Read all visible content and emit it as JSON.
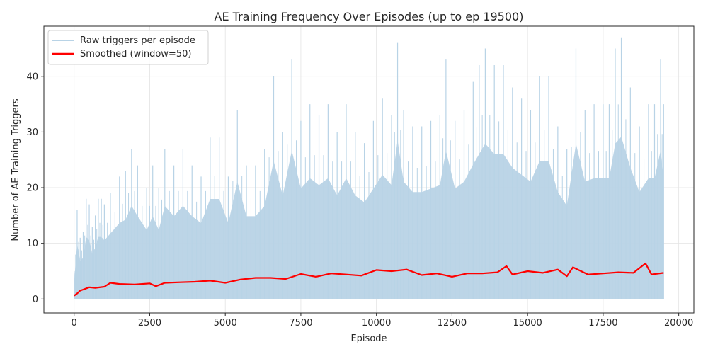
{
  "chart_data": {
    "type": "line",
    "title": "AE Training Frequency Over Episodes (up to ep 19500)",
    "xlabel": "Episode",
    "ylabel": "Number of AE Training Triggers",
    "xlim": [
      -1000,
      20500
    ],
    "ylim": [
      -2.5,
      49
    ],
    "xticks": [
      0,
      2500,
      5000,
      7500,
      10000,
      12500,
      15000,
      17500,
      20000
    ],
    "xtick_labels": [
      "0",
      "2500",
      "5000",
      "7500",
      "10000",
      "12500",
      "15000",
      "17500",
      "20000"
    ],
    "yticks": [
      0,
      10,
      20,
      30,
      40
    ],
    "ytick_labels": [
      "0",
      "10",
      "20",
      "30",
      "40"
    ],
    "grid": true,
    "legend_position": "upper-left",
    "series": [
      {
        "name": "Raw triggers per episode",
        "color": "#b8d3e6",
        "x": [
          0,
          100,
          200,
          300,
          400,
          500,
          600,
          700,
          800,
          900,
          1000,
          1200,
          1500,
          1700,
          1900,
          2100,
          2400,
          2600,
          2800,
          3000,
          3300,
          3600,
          3900,
          4200,
          4500,
          4800,
          5100,
          5400,
          5700,
          6000,
          6300,
          6600,
          6900,
          7200,
          7500,
          7800,
          8100,
          8400,
          8700,
          9000,
          9300,
          9600,
          9900,
          10200,
          10500,
          10700,
          10900,
          11200,
          11500,
          11800,
          12100,
          12300,
          12600,
          12900,
          13200,
          13400,
          13600,
          13900,
          14200,
          14500,
          14800,
          15100,
          15400,
          15700,
          16000,
          16300,
          16600,
          16900,
          17200,
          17500,
          17700,
          17900,
          18100,
          18400,
          18700,
          19000,
          19200,
          19400,
          19500
        ],
        "y_max": [
          5,
          16,
          11,
          12,
          18,
          17,
          13,
          15,
          18,
          18,
          17,
          19,
          22,
          23,
          27,
          24,
          20,
          24,
          20,
          27,
          24,
          27,
          24,
          22,
          29,
          29,
          22,
          34,
          24,
          24,
          27,
          40,
          30,
          43,
          32,
          35,
          33,
          35,
          30,
          35,
          30,
          28,
          32,
          36,
          33,
          46,
          34,
          31,
          31,
          32,
          33,
          43,
          32,
          34,
          39,
          42,
          45,
          42,
          42,
          38,
          36,
          34,
          40,
          40,
          31,
          27,
          45,
          34,
          35,
          35,
          35,
          45,
          47,
          38,
          31,
          35,
          35,
          43,
          35
        ],
        "y_min": [
          0,
          0,
          0,
          0,
          0,
          0,
          0,
          0,
          0,
          0,
          0,
          0,
          0,
          0,
          0,
          0,
          0,
          0,
          0,
          0,
          0,
          0,
          0,
          0,
          0,
          0,
          0,
          0,
          0,
          0,
          0,
          0,
          0,
          0,
          0,
          0,
          0,
          0,
          0,
          0,
          0,
          0,
          0,
          0,
          0,
          0,
          0,
          0,
          0,
          0,
          0,
          0,
          0,
          0,
          0,
          0,
          0,
          0,
          0,
          0,
          0,
          0,
          0,
          0,
          0,
          0,
          0,
          0,
          0,
          0,
          0,
          0,
          0,
          0,
          0,
          0,
          0,
          0,
          0
        ]
      },
      {
        "name": "Smoothed (window=50)",
        "color": "#ff0000",
        "x": [
          0,
          100,
          200,
          300,
          500,
          700,
          1000,
          1200,
          1500,
          2000,
          2500,
          2700,
          3000,
          3500,
          4000,
          4500,
          5000,
          5500,
          6000,
          6500,
          7000,
          7500,
          8000,
          8500,
          9000,
          9500,
          10000,
          10500,
          11000,
          11500,
          12000,
          12500,
          13000,
          13500,
          14000,
          14300,
          14500,
          15000,
          15500,
          16000,
          16300,
          16500,
          17000,
          17500,
          18000,
          18500,
          18900,
          19100,
          19500
        ],
        "y": [
          0.6,
          1.0,
          1.5,
          1.7,
          2.1,
          2.0,
          2.2,
          2.9,
          2.7,
          2.6,
          2.8,
          2.3,
          2.9,
          3.0,
          3.1,
          3.3,
          2.9,
          3.5,
          3.8,
          3.8,
          3.6,
          4.5,
          4.0,
          4.6,
          4.4,
          4.2,
          5.2,
          5.0,
          5.3,
          4.3,
          4.6,
          4.0,
          4.6,
          4.6,
          4.8,
          5.9,
          4.4,
          5.0,
          4.7,
          5.3,
          4.1,
          5.7,
          4.4,
          4.6,
          4.8,
          4.7,
          6.4,
          4.4,
          4.7
        ]
      }
    ]
  }
}
